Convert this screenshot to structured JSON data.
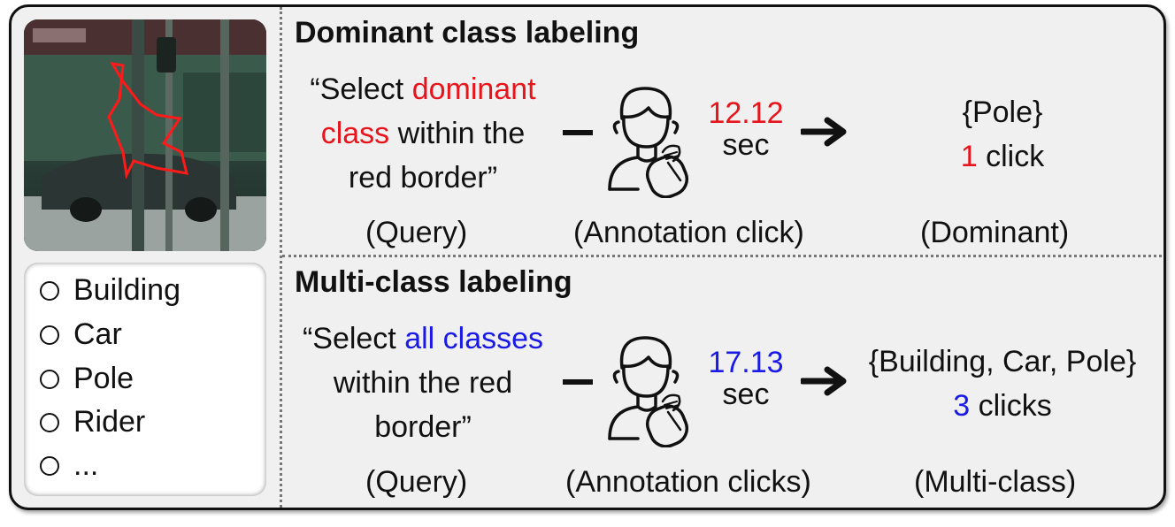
{
  "class_list": [
    "Building",
    "Car",
    "Pole",
    "Rider",
    "..."
  ],
  "dominant": {
    "title": "Dominant class labeling",
    "query_parts": [
      "“Select ",
      "dominant",
      "class",
      " within the",
      "red border”"
    ],
    "time_value": "12.12",
    "time_unit": "sec",
    "result_set": "{Pole}",
    "click_count": "1",
    "click_word": " click",
    "captions": [
      "(Query)",
      "(Annotation click)",
      "(Dominant)"
    ]
  },
  "multi": {
    "title": "Multi-class labeling",
    "query_parts": [
      "“Select ",
      "all classes",
      "within the red",
      "border”"
    ],
    "time_value": "17.13",
    "time_unit": "sec",
    "result_set": "{Building, Car, Pole}",
    "click_count": "3",
    "click_word": " clicks",
    "captions": [
      "(Query)",
      "(Annotation clicks)",
      "(Multi-class)"
    ]
  },
  "colors": {
    "highlight_dominant": "#e8141b",
    "highlight_multi": "#1a1ae6",
    "panel_bg": "#f0f0f0"
  },
  "icons": [
    "annotator-with-mouse-icon",
    "right-arrow-icon",
    "radio-circle-icon"
  ]
}
